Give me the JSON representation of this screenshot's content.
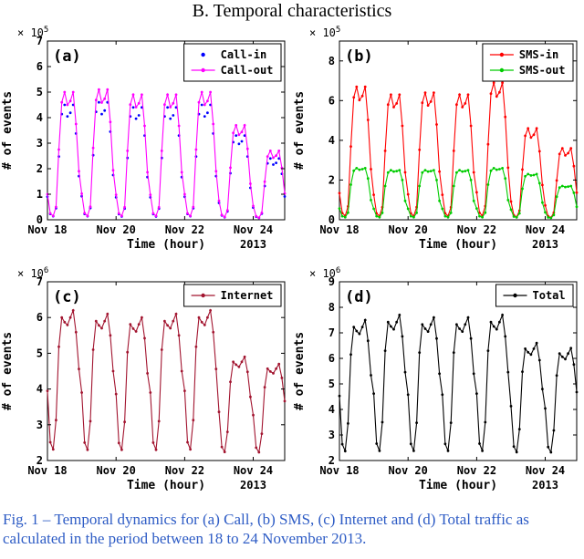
{
  "page": {
    "title": "B. Temporal characteristics",
    "caption": "Fig. 1 – Temporal dynamics for (a) Call, (b) SMS, (c) Internet and (d) Total traffic as calculated in the period between 18 to 24 November 2013.",
    "caption_color": "#2e5cc5"
  },
  "chart_data": [
    {
      "type": "line",
      "panel": "a",
      "panel_label": "(a)",
      "scale_prefix": "× 10",
      "scale_exponent": "5",
      "xlabel": "Time (hour)",
      "ylabel": "# of events",
      "year_label": "2013",
      "x_unit": "hours since Nov 18 2013 00:00",
      "x_step_hours": 2,
      "xlim": [
        0,
        166
      ],
      "ylim": [
        0,
        7
      ],
      "yticks": [
        0,
        1,
        2,
        3,
        4,
        5,
        6,
        7
      ],
      "xticks": [
        {
          "hour": 0,
          "label": "Nov 18"
        },
        {
          "hour": 48,
          "label": "Nov 20"
        },
        {
          "hour": 96,
          "label": "Nov 22"
        },
        {
          "hour": 144,
          "label": "Nov 24"
        }
      ],
      "legend_position": "top-right",
      "series": [
        {
          "name": "Call-in",
          "color": "#0000ff",
          "line": false,
          "marker": "dot",
          "values": [
            0.9,
            0.23,
            0.14,
            0.45,
            2.48,
            4.14,
            4.5,
            4.05,
            4.19,
            4.5,
            3.38,
            1.71,
            0.92,
            0.23,
            0.14,
            0.46,
            2.53,
            4.23,
            4.6,
            4.14,
            4.28,
            4.6,
            3.45,
            1.75,
            0.88,
            0.22,
            0.13,
            0.44,
            2.42,
            4.05,
            4.4,
            3.96,
            4.09,
            4.4,
            3.3,
            1.67,
            0.88,
            0.22,
            0.13,
            0.44,
            2.42,
            4.05,
            4.4,
            3.96,
            4.09,
            4.4,
            3.3,
            1.67,
            0.9,
            0.23,
            0.14,
            0.45,
            2.48,
            4.14,
            4.5,
            4.05,
            4.19,
            4.5,
            3.38,
            1.71,
            0.66,
            0.17,
            0.1,
            0.33,
            1.82,
            3.04,
            3.3,
            2.97,
            3.07,
            3.3,
            2.48,
            1.25,
            0.48,
            0.12,
            0.07,
            0.24,
            1.32,
            2.21,
            2.4,
            2.16,
            2.23,
            2.4,
            1.8,
            0.91
          ]
        },
        {
          "name": "Call-out",
          "color": "#ff00ff",
          "line": true,
          "marker": "dot",
          "values": [
            1.0,
            0.25,
            0.15,
            0.5,
            2.75,
            4.6,
            5.0,
            4.5,
            4.65,
            5.0,
            3.75,
            1.9,
            1.02,
            0.26,
            0.15,
            0.51,
            2.81,
            4.69,
            5.1,
            4.59,
            4.74,
            5.1,
            3.83,
            1.94,
            0.98,
            0.25,
            0.15,
            0.49,
            2.7,
            4.51,
            4.9,
            4.41,
            4.56,
            4.9,
            3.68,
            1.86,
            0.98,
            0.25,
            0.15,
            0.49,
            2.7,
            4.51,
            4.9,
            4.41,
            4.56,
            4.9,
            3.68,
            1.86,
            1.0,
            0.25,
            0.15,
            0.5,
            2.75,
            4.6,
            5.0,
            4.5,
            4.65,
            5.0,
            3.75,
            1.9,
            0.74,
            0.19,
            0.11,
            0.37,
            2.04,
            3.4,
            3.7,
            3.33,
            3.44,
            3.7,
            2.78,
            1.41,
            0.54,
            0.14,
            0.08,
            0.27,
            1.49,
            2.48,
            2.7,
            2.43,
            2.51,
            2.7,
            2.03,
            1.03
          ]
        }
      ]
    },
    {
      "type": "line",
      "panel": "b",
      "panel_label": "(b)",
      "scale_prefix": "× 10",
      "scale_exponent": "5",
      "xlabel": "Time (hour)",
      "ylabel": "# of events",
      "year_label": "2013",
      "x_unit": "hours since Nov 18 2013 00:00",
      "x_step_hours": 2,
      "xlim": [
        0,
        166
      ],
      "ylim": [
        0,
        9
      ],
      "yticks": [
        0,
        2,
        4,
        6,
        8
      ],
      "xticks": [
        {
          "hour": 0,
          "label": "Nov 18"
        },
        {
          "hour": 48,
          "label": "Nov 20"
        },
        {
          "hour": 96,
          "label": "Nov 22"
        },
        {
          "hour": 144,
          "label": "Nov 24"
        }
      ],
      "legend_position": "top-right",
      "series": [
        {
          "name": "SMS-in",
          "color": "#ff0000",
          "line": true,
          "marker": "dot",
          "values": [
            1.34,
            0.34,
            0.2,
            0.67,
            3.69,
            6.16,
            6.7,
            6.03,
            6.23,
            6.7,
            5.03,
            2.55,
            1.26,
            0.32,
            0.19,
            0.63,
            3.47,
            5.8,
            6.3,
            5.67,
            5.86,
            6.3,
            4.73,
            2.39,
            1.28,
            0.32,
            0.19,
            0.64,
            3.52,
            5.89,
            6.4,
            5.76,
            5.95,
            6.4,
            4.8,
            2.43,
            1.26,
            0.32,
            0.19,
            0.63,
            3.47,
            5.8,
            6.3,
            5.67,
            5.86,
            6.3,
            4.73,
            2.39,
            1.38,
            0.35,
            0.21,
            0.69,
            3.8,
            6.35,
            6.9,
            6.21,
            6.42,
            6.9,
            5.18,
            2.62,
            0.92,
            0.23,
            0.14,
            0.46,
            2.53,
            4.23,
            4.6,
            4.14,
            4.28,
            4.6,
            3.45,
            1.75,
            0.72,
            0.18,
            0.11,
            0.36,
            1.98,
            3.31,
            3.6,
            3.24,
            3.35,
            3.6,
            2.7,
            1.37
          ]
        },
        {
          "name": "SMS-out",
          "color": "#00cc00",
          "line": true,
          "marker": "dot",
          "values": [
            0.57,
            0.18,
            0.13,
            0.36,
            1.77,
            2.47,
            2.6,
            2.52,
            2.55,
            2.6,
            2.08,
            0.99,
            0.55,
            0.18,
            0.13,
            0.35,
            1.7,
            2.38,
            2.5,
            2.43,
            2.45,
            2.5,
            2.0,
            0.95,
            0.55,
            0.18,
            0.13,
            0.35,
            1.7,
            2.38,
            2.5,
            2.43,
            2.45,
            2.5,
            2.0,
            0.95,
            0.55,
            0.18,
            0.13,
            0.35,
            1.7,
            2.38,
            2.5,
            2.43,
            2.45,
            2.5,
            2.0,
            0.95,
            0.57,
            0.18,
            0.13,
            0.36,
            1.77,
            2.47,
            2.6,
            2.52,
            2.55,
            2.6,
            2.08,
            0.99,
            0.51,
            0.16,
            0.12,
            0.32,
            1.56,
            2.19,
            2.3,
            2.23,
            2.25,
            2.3,
            1.84,
            0.87,
            0.37,
            0.12,
            0.09,
            0.24,
            1.16,
            1.62,
            1.7,
            1.65,
            1.67,
            1.7,
            1.36,
            0.65
          ]
        }
      ]
    },
    {
      "type": "line",
      "panel": "c",
      "panel_label": "(c)",
      "scale_prefix": "× 10",
      "scale_exponent": "6",
      "xlabel": "Time (hour)",
      "ylabel": "# of events",
      "year_label": "2013",
      "x_unit": "hours since Nov 18 2013 00:00",
      "x_step_hours": 2,
      "xlim": [
        0,
        166
      ],
      "ylim": [
        2,
        7
      ],
      "yticks": [
        2,
        3,
        4,
        5,
        6,
        7
      ],
      "xticks": [
        {
          "hour": 0,
          "label": "Nov 18"
        },
        {
          "hour": 48,
          "label": "Nov 20"
        },
        {
          "hour": 96,
          "label": "Nov 22"
        },
        {
          "hour": 144,
          "label": "Nov 24"
        }
      ],
      "legend_position": "top-right",
      "series": [
        {
          "name": "Internet",
          "color": "#a2142f",
          "line": true,
          "marker": "dot",
          "values": [
            3.95,
            2.51,
            2.31,
            3.13,
            5.18,
            6.0,
            5.87,
            5.79,
            6.0,
            6.2,
            5.59,
            4.56,
            3.9,
            2.5,
            2.3,
            3.1,
            5.1,
            5.9,
            5.78,
            5.7,
            5.9,
            6.1,
            5.5,
            4.5,
            3.86,
            2.49,
            2.3,
            3.08,
            5.03,
            5.81,
            5.69,
            5.61,
            5.81,
            6.0,
            5.42,
            4.44,
            3.9,
            2.5,
            2.3,
            3.1,
            5.1,
            5.9,
            5.78,
            5.7,
            5.9,
            6.1,
            5.5,
            4.5,
            3.95,
            2.51,
            2.31,
            3.13,
            5.18,
            6.0,
            5.87,
            5.79,
            6.0,
            6.2,
            5.59,
            4.56,
            3.36,
            2.38,
            2.24,
            2.8,
            4.2,
            4.76,
            4.68,
            4.62,
            4.76,
            4.9,
            4.48,
            3.78,
            3.27,
            2.36,
            2.23,
            2.75,
            4.05,
            4.57,
            4.49,
            4.44,
            4.57,
            4.7,
            4.31,
            3.66
          ]
        }
      ]
    },
    {
      "type": "line",
      "panel": "d",
      "panel_label": "(d)",
      "scale_prefix": "× 10",
      "scale_exponent": "6",
      "xlabel": "Time (hour)",
      "ylabel": "# of events",
      "year_label": "2013",
      "x_unit": "hours since Nov 18 2013 00:00",
      "x_step_hours": 2,
      "xlim": [
        0,
        166
      ],
      "ylim": [
        2,
        9
      ],
      "yticks": [
        2,
        3,
        4,
        5,
        6,
        7,
        8,
        9
      ],
      "xticks": [
        {
          "hour": 0,
          "label": "Nov 18"
        },
        {
          "hour": 48,
          "label": "Nov 20"
        },
        {
          "hour": 96,
          "label": "Nov 22"
        },
        {
          "hour": 144,
          "label": "Nov 24"
        }
      ],
      "legend_position": "top-right",
      "series": [
        {
          "name": "Total",
          "color": "#000000",
          "line": true,
          "marker": "dot",
          "values": [
            4.53,
            2.64,
            2.37,
            3.45,
            6.15,
            7.23,
            7.07,
            6.96,
            7.23,
            7.5,
            6.69,
            5.34,
            4.62,
            2.66,
            2.38,
            3.5,
            6.3,
            7.42,
            7.25,
            7.14,
            7.42,
            7.7,
            6.86,
            5.46,
            4.58,
            2.65,
            2.38,
            3.48,
            6.23,
            7.33,
            7.16,
            7.05,
            7.33,
            7.6,
            6.78,
            5.4,
            4.58,
            2.65,
            2.38,
            3.48,
            6.23,
            7.33,
            7.16,
            7.05,
            7.33,
            7.6,
            6.78,
            5.4,
            4.62,
            2.66,
            2.38,
            3.5,
            6.3,
            7.42,
            7.25,
            7.14,
            7.42,
            7.7,
            6.86,
            5.46,
            4.13,
            2.55,
            2.33,
            3.23,
            5.48,
            6.38,
            6.24,
            6.15,
            6.38,
            6.6,
            5.93,
            4.8,
            4.04,
            2.53,
            2.32,
            3.18,
            5.33,
            6.19,
            6.06,
            5.97,
            6.19,
            6.4,
            5.76,
            4.68
          ]
        }
      ]
    }
  ]
}
